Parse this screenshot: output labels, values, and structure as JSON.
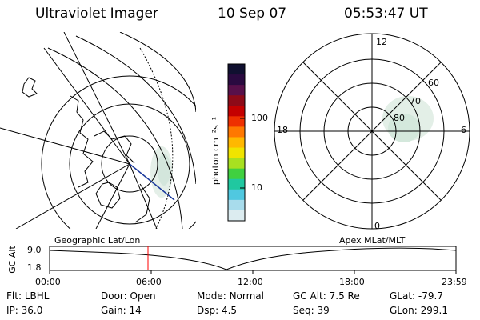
{
  "header": {
    "instrument": "Ultraviolet Imager",
    "date": "10 Sep 07",
    "time": "05:53:47 UT"
  },
  "colorbar": {
    "label": "photon cm⁻²s⁻¹",
    "ticks": [
      "100",
      "10"
    ],
    "colors": [
      "#101030",
      "#2a0a40",
      "#58104a",
      "#8e0a18",
      "#c40000",
      "#ee3000",
      "#ff7800",
      "#ffb800",
      "#f0e400",
      "#a8e020",
      "#40d040",
      "#20c8a0",
      "#50c8e0",
      "#a8dcec",
      "#dcecf0"
    ]
  },
  "polar_plot": {
    "mlt_labels": {
      "top": "12",
      "left": "18",
      "right": "6",
      "bottom": "0"
    },
    "lat_labels": [
      "60",
      "70",
      "80"
    ]
  },
  "timeline": {
    "left_title": "Geographic Lat/Lon",
    "right_title": "Apex MLat/MLT",
    "ylabel": "GC Alt",
    "y_ticks": [
      "9.0",
      "1.8"
    ],
    "x_ticks": [
      "00:00",
      "06:00",
      "12:00",
      "18:00",
      "23:59"
    ],
    "marker_color": "#ff0000"
  },
  "info": {
    "row1": [
      {
        "label": "Flt:",
        "value": "LBHL"
      },
      {
        "label": "Door:",
        "value": "Open"
      },
      {
        "label": "Mode:",
        "value": "Normal"
      },
      {
        "label": "GC Alt:",
        "value": "7.5 Re"
      },
      {
        "label": "GLat:",
        "value": "-79.7"
      }
    ],
    "row2": [
      {
        "label": "IP:",
        "value": "36.0"
      },
      {
        "label": "Gain:",
        "value": "14"
      },
      {
        "label": "Dsp:",
        "value": "4.5"
      },
      {
        "label": "Seq:",
        "value": "39"
      },
      {
        "label": "GLon:",
        "value": "299.1"
      }
    ]
  }
}
